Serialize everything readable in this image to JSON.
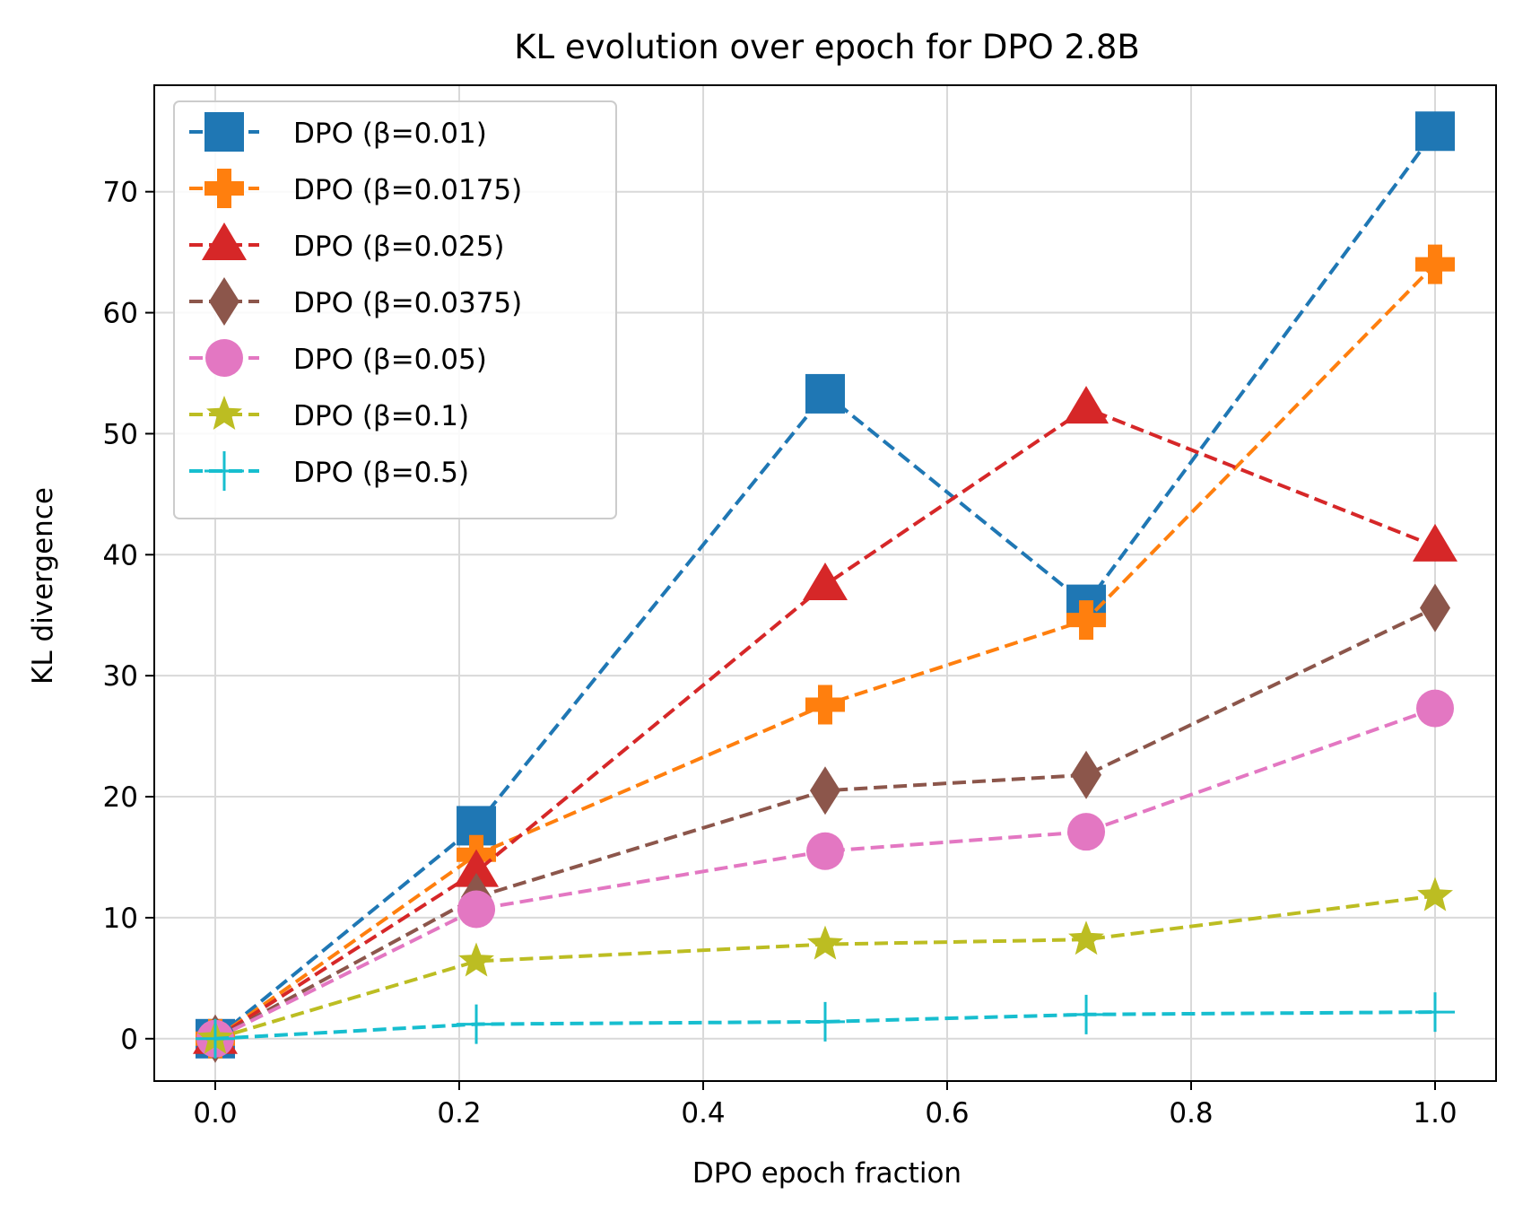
{
  "chart_data": {
    "type": "line",
    "title": "KL evolution over epoch for DPO 2.8B",
    "xlabel": "DPO epoch fraction",
    "ylabel": "KL divergence",
    "xlim": [
      -0.05,
      1.05
    ],
    "ylim": [
      -3.5,
      78.8
    ],
    "xticks": [
      0.0,
      0.2,
      0.4,
      0.6,
      0.8,
      1.0
    ],
    "xtick_labels": [
      "0.0",
      "0.2",
      "0.4",
      "0.6",
      "0.8",
      "1.0"
    ],
    "yticks": [
      0,
      10,
      20,
      30,
      40,
      50,
      60,
      70
    ],
    "ytick_labels": [
      "0",
      "10",
      "20",
      "30",
      "40",
      "50",
      "60",
      "70"
    ],
    "grid": true,
    "legend_position": "top-left",
    "x": [
      0.0,
      0.214,
      0.5,
      0.714,
      1.0
    ],
    "series": [
      {
        "name": "DPO (β=0.01)",
        "color": "#1f77b4",
        "marker": "square",
        "values": [
          0.0,
          17.6,
          53.3,
          35.9,
          75.0
        ]
      },
      {
        "name": "DPO (β=0.0175)",
        "color": "#ff7f0e",
        "marker": "plus",
        "values": [
          0.0,
          15.2,
          27.6,
          34.6,
          64.0
        ]
      },
      {
        "name": "DPO (β=0.025)",
        "color": "#d62728",
        "marker": "triangle",
        "values": [
          0.0,
          13.8,
          37.5,
          52.1,
          40.7
        ]
      },
      {
        "name": "DPO (β=0.0375)",
        "color": "#8c564b",
        "marker": "diamond",
        "values": [
          0.0,
          11.7,
          20.5,
          21.8,
          35.6
        ]
      },
      {
        "name": "DPO (β=0.05)",
        "color": "#e377c2",
        "marker": "circle",
        "values": [
          0.0,
          10.7,
          15.5,
          17.1,
          27.3
        ]
      },
      {
        "name": "DPO (β=0.1)",
        "color": "#bcbd22",
        "marker": "star",
        "values": [
          0.0,
          6.4,
          7.8,
          8.2,
          11.8
        ]
      },
      {
        "name": "DPO (β=0.5)",
        "color": "#17becf",
        "marker": "thinplus",
        "values": [
          0.0,
          1.2,
          1.4,
          2.0,
          2.2
        ]
      }
    ]
  }
}
